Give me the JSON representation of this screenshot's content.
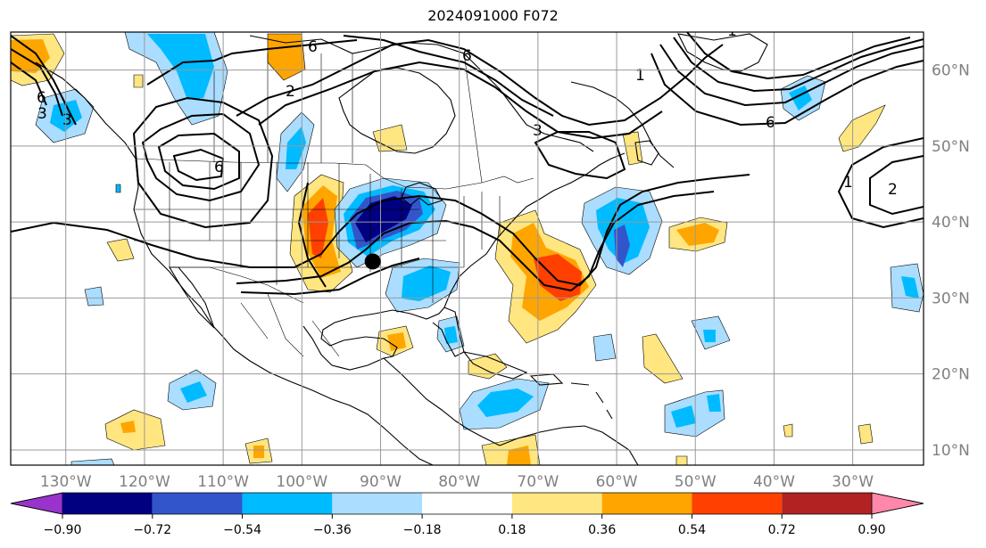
{
  "title": "2024091000 F072",
  "map": {
    "lon_range": [
      -137,
      -21
    ],
    "lat_range": [
      8,
      65
    ],
    "lon_ticks": [
      {
        "value": -130,
        "label": "130°W"
      },
      {
        "value": -120,
        "label": "120°W"
      },
      {
        "value": -110,
        "label": "110°W"
      },
      {
        "value": -100,
        "label": "100°W"
      },
      {
        "value": -90,
        "label": "90°W"
      },
      {
        "value": -80,
        "label": "80°W"
      },
      {
        "value": -70,
        "label": "70°W"
      },
      {
        "value": -60,
        "label": "60°W"
      },
      {
        "value": -50,
        "label": "50°W"
      },
      {
        "value": -40,
        "label": "40°W"
      },
      {
        "value": -30,
        "label": "30°W"
      }
    ],
    "lat_ticks": [
      {
        "value": 60,
        "label": "60°N"
      },
      {
        "value": 50,
        "label": "50°N"
      },
      {
        "value": 40,
        "label": "40°N"
      },
      {
        "value": 30,
        "label": "30°N"
      },
      {
        "value": 20,
        "label": "20°N"
      },
      {
        "value": 10,
        "label": "10°N"
      }
    ],
    "grid": true,
    "marker": {
      "lon": -91,
      "lat": 34.8,
      "shape": "black-dot"
    },
    "contour_labels": [
      "6",
      "3",
      "1",
      "2",
      "6",
      "3",
      "6",
      "6",
      "1",
      "2",
      "6",
      "1",
      "3"
    ]
  },
  "colorbar": {
    "orientation": "horizontal",
    "extend": "both",
    "levels": [
      "−0.90",
      "−0.72",
      "−0.54",
      "−0.36",
      "−0.18",
      "0.18",
      "0.36",
      "0.54",
      "0.72",
      "0.90"
    ],
    "colors": [
      "#9933cc",
      "#000080",
      "#3355cc",
      "#00bbff",
      "#aaddff",
      "#ffffff",
      "#ffe680",
      "#ffa500",
      "#ff4000",
      "#b22222",
      "#ff88aa"
    ]
  }
}
